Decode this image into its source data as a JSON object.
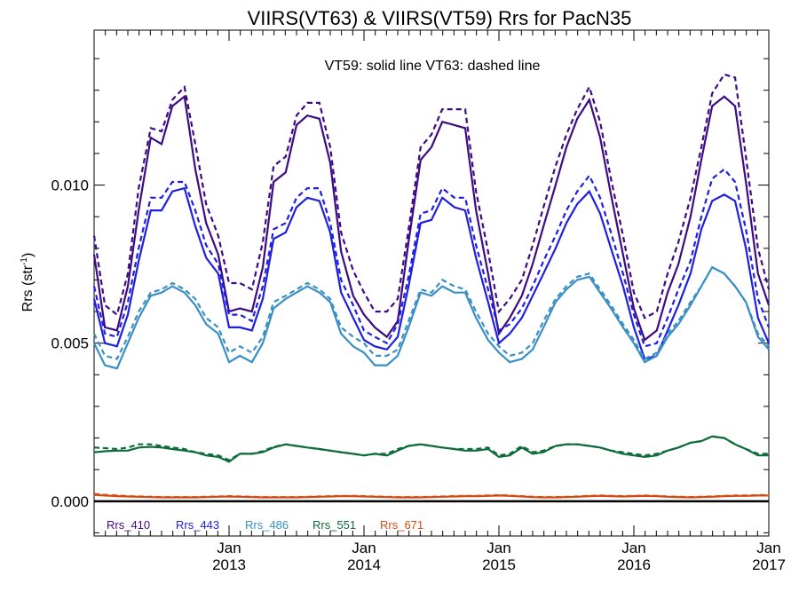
{
  "chart_data": {
    "type": "line",
    "title": "VIIRS(VT63) & VIIRS(VT59)  Rrs for PacN35",
    "annotation": "VT59: solid line   VT63: dashed line",
    "ylabel_main": "Rrs (str",
    "ylabel_sup": "-1",
    "ylabel_close": ")",
    "ylim": [
      -0.0011,
      0.0149
    ],
    "xlim": [
      2012.0,
      2017.0
    ],
    "y_ticks": [
      {
        "value": 0.0,
        "label": "0.000"
      },
      {
        "value": 0.005,
        "label": "0.005"
      },
      {
        "value": 0.01,
        "label": "0.010"
      }
    ],
    "x_ticks": [
      {
        "value": 2013.0,
        "month": "Jan",
        "year": "2013"
      },
      {
        "value": 2014.0,
        "month": "Jan",
        "year": "2014"
      },
      {
        "value": 2015.0,
        "month": "Jan",
        "year": "2015"
      },
      {
        "value": 2016.0,
        "month": "Jan",
        "year": "2016"
      },
      {
        "value": 2017.0,
        "month": "Jan",
        "year": "2017"
      }
    ],
    "grid": false,
    "legend_position": "bottom-left",
    "x": [
      2012.0,
      2012.08,
      2012.17,
      2012.25,
      2012.33,
      2012.42,
      2012.5,
      2012.58,
      2012.67,
      2012.75,
      2012.83,
      2012.92,
      2013.0,
      2013.08,
      2013.17,
      2013.25,
      2013.33,
      2013.42,
      2013.5,
      2013.58,
      2013.67,
      2013.75,
      2013.83,
      2013.92,
      2014.0,
      2014.08,
      2014.17,
      2014.25,
      2014.33,
      2014.42,
      2014.5,
      2014.58,
      2014.67,
      2014.75,
      2014.83,
      2014.92,
      2015.0,
      2015.08,
      2015.17,
      2015.25,
      2015.33,
      2015.42,
      2015.5,
      2015.58,
      2015.67,
      2015.75,
      2015.83,
      2015.92,
      2016.0,
      2016.08,
      2016.17,
      2016.25,
      2016.33,
      2016.42,
      2016.5,
      2016.58,
      2016.67,
      2016.75,
      2016.83,
      2016.92,
      2017.0
    ],
    "series": [
      {
        "name": "Rrs_410",
        "color": "#3d0b82",
        "vt59": [
          0.0078,
          0.0055,
          0.0054,
          0.0068,
          0.0092,
          0.0115,
          0.0113,
          0.0125,
          0.0128,
          0.0105,
          0.0088,
          0.0078,
          0.006,
          0.0061,
          0.006,
          0.0074,
          0.0101,
          0.0104,
          0.0119,
          0.0122,
          0.0121,
          0.0107,
          0.0079,
          0.0065,
          0.0059,
          0.0055,
          0.0052,
          0.0057,
          0.0082,
          0.0108,
          0.0112,
          0.012,
          0.0119,
          0.0118,
          0.0092,
          0.0072,
          0.0053,
          0.0058,
          0.0065,
          0.0075,
          0.0087,
          0.01,
          0.0112,
          0.0121,
          0.0127,
          0.0115,
          0.0097,
          0.0078,
          0.0061,
          0.0051,
          0.0054,
          0.0066,
          0.0075,
          0.009,
          0.0108,
          0.0125,
          0.0128,
          0.0125,
          0.0101,
          0.0072,
          0.0062
        ],
        "vt63": [
          0.0084,
          0.0062,
          0.0059,
          0.0072,
          0.0099,
          0.0118,
          0.0117,
          0.0127,
          0.0131,
          0.0113,
          0.0094,
          0.0084,
          0.0069,
          0.0069,
          0.0067,
          0.0082,
          0.0106,
          0.0109,
          0.0122,
          0.0126,
          0.0126,
          0.0112,
          0.0085,
          0.0073,
          0.0066,
          0.006,
          0.006,
          0.0064,
          0.0086,
          0.0112,
          0.0116,
          0.0124,
          0.0124,
          0.0124,
          0.0098,
          0.0079,
          0.006,
          0.0064,
          0.007,
          0.0081,
          0.0093,
          0.0106,
          0.0116,
          0.0124,
          0.0131,
          0.012,
          0.0102,
          0.0084,
          0.0066,
          0.0058,
          0.006,
          0.0072,
          0.0082,
          0.0096,
          0.0112,
          0.0129,
          0.0135,
          0.0134,
          0.0109,
          0.008,
          0.0067
        ]
      },
      {
        "name": "Rrs_443",
        "color": "#1f1fe0",
        "vt59": [
          0.0064,
          0.005,
          0.0049,
          0.0059,
          0.0076,
          0.0092,
          0.0092,
          0.0098,
          0.0099,
          0.0087,
          0.0077,
          0.0072,
          0.0055,
          0.0055,
          0.0054,
          0.0064,
          0.0083,
          0.0085,
          0.0093,
          0.0096,
          0.0095,
          0.0085,
          0.0066,
          0.0058,
          0.0051,
          0.0049,
          0.0048,
          0.0052,
          0.0068,
          0.0088,
          0.0089,
          0.0096,
          0.0093,
          0.0092,
          0.0077,
          0.0063,
          0.005,
          0.0053,
          0.0058,
          0.0065,
          0.0072,
          0.008,
          0.0088,
          0.0094,
          0.0098,
          0.0091,
          0.008,
          0.0068,
          0.0055,
          0.0045,
          0.0046,
          0.0054,
          0.0062,
          0.0072,
          0.0086,
          0.0095,
          0.0097,
          0.0095,
          0.008,
          0.0058,
          0.005
        ],
        "vt63": [
          0.0068,
          0.0053,
          0.0052,
          0.0063,
          0.008,
          0.0096,
          0.0096,
          0.0101,
          0.0101,
          0.0092,
          0.0081,
          0.0075,
          0.0059,
          0.0059,
          0.0057,
          0.0068,
          0.0086,
          0.0088,
          0.0096,
          0.0099,
          0.0099,
          0.0088,
          0.007,
          0.0062,
          0.0054,
          0.0052,
          0.005,
          0.0056,
          0.0071,
          0.0091,
          0.0092,
          0.0099,
          0.0096,
          0.0096,
          0.0081,
          0.0067,
          0.0054,
          0.0056,
          0.0061,
          0.0068,
          0.0076,
          0.0084,
          0.0092,
          0.0098,
          0.0103,
          0.0096,
          0.0085,
          0.0072,
          0.0059,
          0.0049,
          0.005,
          0.0058,
          0.0067,
          0.0076,
          0.009,
          0.0102,
          0.0105,
          0.0101,
          0.0086,
          0.0064,
          0.0055
        ]
      },
      {
        "name": "Rrs_486",
        "color": "#3a8fc4",
        "vt59": [
          0.005,
          0.0043,
          0.0042,
          0.005,
          0.0058,
          0.0065,
          0.0066,
          0.0068,
          0.0066,
          0.0062,
          0.0056,
          0.0053,
          0.0044,
          0.0046,
          0.0044,
          0.005,
          0.0061,
          0.0064,
          0.0066,
          0.0068,
          0.0066,
          0.0063,
          0.0053,
          0.0049,
          0.0047,
          0.0043,
          0.0043,
          0.0046,
          0.0055,
          0.0066,
          0.0065,
          0.0068,
          0.0066,
          0.0066,
          0.0058,
          0.0051,
          0.0047,
          0.0044,
          0.0045,
          0.0048,
          0.0055,
          0.0063,
          0.0067,
          0.007,
          0.0071,
          0.0066,
          0.0061,
          0.0055,
          0.005,
          0.0044,
          0.0046,
          0.0052,
          0.0056,
          0.0062,
          0.0068,
          0.0074,
          0.0072,
          0.0068,
          0.0063,
          0.0052,
          0.0048
        ],
        "vt63": [
          0.0053,
          0.0046,
          0.0045,
          0.0052,
          0.006,
          0.0066,
          0.0067,
          0.0069,
          0.0067,
          0.0064,
          0.0058,
          0.0055,
          0.0047,
          0.0049,
          0.0047,
          0.0052,
          0.0063,
          0.0065,
          0.0067,
          0.0069,
          0.0067,
          0.0064,
          0.0055,
          0.0052,
          0.005,
          0.0046,
          0.0046,
          0.0048,
          0.0057,
          0.0067,
          0.0066,
          0.007,
          0.0068,
          0.0067,
          0.006,
          0.0053,
          0.0049,
          0.0046,
          0.0047,
          0.005,
          0.0057,
          0.0064,
          0.0068,
          0.0071,
          0.0072,
          0.0067,
          0.0062,
          0.0056,
          0.0051,
          0.0045,
          0.0047,
          0.0053,
          0.0057,
          0.0063,
          0.0068,
          0.0074,
          0.0072,
          0.0068,
          0.0063,
          0.0053,
          0.0049
        ]
      },
      {
        "name": "Rrs_551",
        "color": "#0e6b3a",
        "vt59": [
          0.00155,
          0.00158,
          0.0016,
          0.0016,
          0.0017,
          0.00172,
          0.0017,
          0.00165,
          0.0016,
          0.00155,
          0.00145,
          0.0014,
          0.00125,
          0.0015,
          0.0015,
          0.00155,
          0.0017,
          0.0018,
          0.00175,
          0.0017,
          0.00165,
          0.0016,
          0.00155,
          0.0015,
          0.00145,
          0.0015,
          0.00145,
          0.0016,
          0.00175,
          0.0018,
          0.00175,
          0.0017,
          0.00165,
          0.0016,
          0.0016,
          0.00165,
          0.0014,
          0.00145,
          0.0017,
          0.0015,
          0.00155,
          0.00175,
          0.0018,
          0.0018,
          0.00175,
          0.0017,
          0.0016,
          0.0015,
          0.00145,
          0.0014,
          0.00145,
          0.0016,
          0.0017,
          0.00185,
          0.0019,
          0.00205,
          0.002,
          0.0018,
          0.00165,
          0.00145,
          0.00145
        ],
        "vt63": [
          0.0017,
          0.00168,
          0.00165,
          0.0017,
          0.0018,
          0.0018,
          0.00175,
          0.0017,
          0.00165,
          0.00155,
          0.0015,
          0.00145,
          0.0013,
          0.0015,
          0.0015,
          0.00158,
          0.00172,
          0.0018,
          0.00175,
          0.0017,
          0.00165,
          0.0016,
          0.00155,
          0.0015,
          0.00145,
          0.0015,
          0.0015,
          0.00165,
          0.00175,
          0.0018,
          0.00175,
          0.0017,
          0.00165,
          0.00165,
          0.00165,
          0.0017,
          0.00145,
          0.0015,
          0.00175,
          0.00155,
          0.0016,
          0.00175,
          0.0018,
          0.0018,
          0.00175,
          0.0017,
          0.0016,
          0.00155,
          0.0015,
          0.00145,
          0.0015,
          0.0016,
          0.0017,
          0.00185,
          0.0019,
          0.00205,
          0.002,
          0.0018,
          0.00165,
          0.0015,
          0.0015
        ]
      },
      {
        "name": "Rrs_671",
        "color": "#d9480f",
        "vt59": [
          0.0002,
          0.00018,
          0.00016,
          0.00015,
          0.00014,
          0.00013,
          0.00012,
          0.00012,
          0.00012,
          0.00012,
          0.00013,
          0.00014,
          0.00015,
          0.00014,
          0.00013,
          0.00012,
          0.00012,
          0.00012,
          0.00012,
          0.00013,
          0.00014,
          0.00015,
          0.00016,
          0.00016,
          0.00015,
          0.00014,
          0.00013,
          0.00012,
          0.00012,
          0.00012,
          0.00013,
          0.00014,
          0.00015,
          0.00016,
          0.00016,
          0.00017,
          0.00018,
          0.00017,
          0.00015,
          0.00013,
          0.00012,
          0.00012,
          0.00013,
          0.00014,
          0.00016,
          0.00017,
          0.00016,
          0.00015,
          0.00016,
          0.00017,
          0.00016,
          0.00014,
          0.00013,
          0.00012,
          0.00013,
          0.00014,
          0.00016,
          0.00017,
          0.00017,
          0.00018,
          0.00018
        ],
        "vt63": [
          0.00023,
          0.0002,
          0.00018,
          0.00016,
          0.00015,
          0.00014,
          0.00013,
          0.00013,
          0.00013,
          0.00013,
          0.00014,
          0.00015,
          0.00016,
          0.00015,
          0.00014,
          0.00013,
          0.00013,
          0.00013,
          0.00013,
          0.00014,
          0.00015,
          0.00016,
          0.00017,
          0.00017,
          0.00016,
          0.00015,
          0.00014,
          0.00013,
          0.00013,
          0.00013,
          0.00014,
          0.00015,
          0.00016,
          0.00017,
          0.00017,
          0.00018,
          0.00019,
          0.00018,
          0.00016,
          0.00014,
          0.00013,
          0.00013,
          0.00014,
          0.00015,
          0.00017,
          0.00018,
          0.00017,
          0.00016,
          0.00017,
          0.00018,
          0.00017,
          0.00015,
          0.00014,
          0.00013,
          0.00014,
          0.00015,
          0.00017,
          0.00018,
          0.00018,
          0.00019,
          0.00019
        ]
      }
    ]
  }
}
